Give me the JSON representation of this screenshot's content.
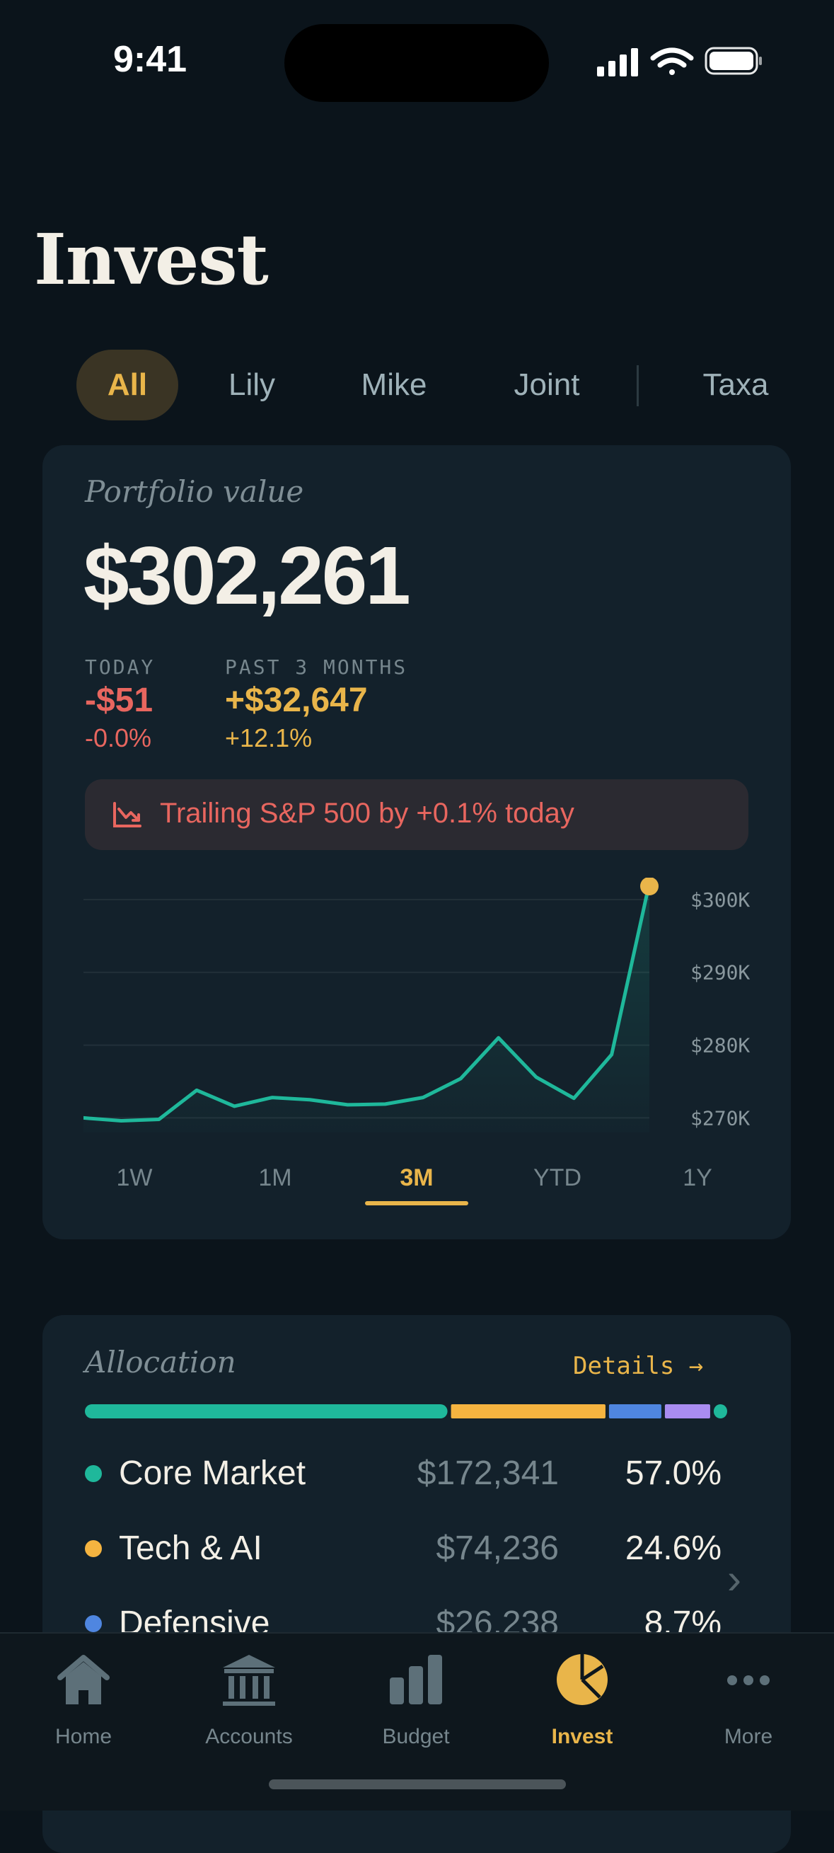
{
  "status_bar": {
    "time": "9:41"
  },
  "header": {
    "title": "Invest"
  },
  "filter_tabs": [
    {
      "label": "All",
      "active": true
    },
    {
      "label": "Lily"
    },
    {
      "label": "Mike"
    },
    {
      "label": "Joint"
    },
    {
      "label": "Taxa"
    }
  ],
  "portfolio": {
    "label": "Portfolio value",
    "value": "$302,261",
    "today_label": "TODAY",
    "today_change": "-$51",
    "today_pct": "-0.0%",
    "period_label": "PAST 3 MONTHS",
    "period_change": "+$32,647",
    "period_pct": "+12.1%",
    "alert": "Trailing S&P 500 by +0.1% today"
  },
  "chart_data": {
    "type": "line",
    "y_tick_labels": [
      "$300K",
      "$290K",
      "$280K",
      "$270K"
    ],
    "y_ticks": [
      300000,
      290000,
      280000,
      270000
    ],
    "ylim": [
      268000,
      303000
    ],
    "values": [
      270000,
      269600,
      269800,
      273800,
      271600,
      272800,
      272500,
      271800,
      271900,
      272800,
      275400,
      281000,
      275600,
      272700,
      278700,
      302261
    ],
    "highlight_last": true,
    "grid": true
  },
  "ranges": [
    {
      "label": "1W"
    },
    {
      "label": "1M"
    },
    {
      "label": "3M",
      "active": true
    },
    {
      "label": "YTD"
    },
    {
      "label": "1Y"
    }
  ],
  "allocation": {
    "label": "Allocation",
    "details_label": "Details →",
    "rows": [
      {
        "name": "Core Market",
        "amount": "$172,341",
        "pct": "57.0%",
        "share": 57.0,
        "color": "#1fb89b"
      },
      {
        "name": "Tech & AI",
        "amount": "$74,236",
        "pct": "24.6%",
        "share": 24.6,
        "color": "#f5b440"
      },
      {
        "name": "Defensive",
        "amount": "$26,238",
        "pct": "8.7%",
        "share": 8.7,
        "color": "#4f86e0"
      }
    ],
    "extra_segments": [
      {
        "share": 7.6,
        "color": "#a98cf0"
      },
      {
        "share": 2.1,
        "color": "#1fb89b"
      }
    ]
  },
  "tab_bar": [
    {
      "label": "Home",
      "icon": "home-icon"
    },
    {
      "label": "Accounts",
      "icon": "bank-icon"
    },
    {
      "label": "Budget",
      "icon": "bar-chart-icon"
    },
    {
      "label": "Invest",
      "icon": "pie-chart-icon",
      "active": true
    },
    {
      "label": "More",
      "icon": "more-icon"
    }
  ],
  "colors": {
    "accent": "#e9b54a",
    "teal": "#1fb89b",
    "negative": "#e8665f",
    "background": "#0b141b",
    "card": "#13212b"
  }
}
